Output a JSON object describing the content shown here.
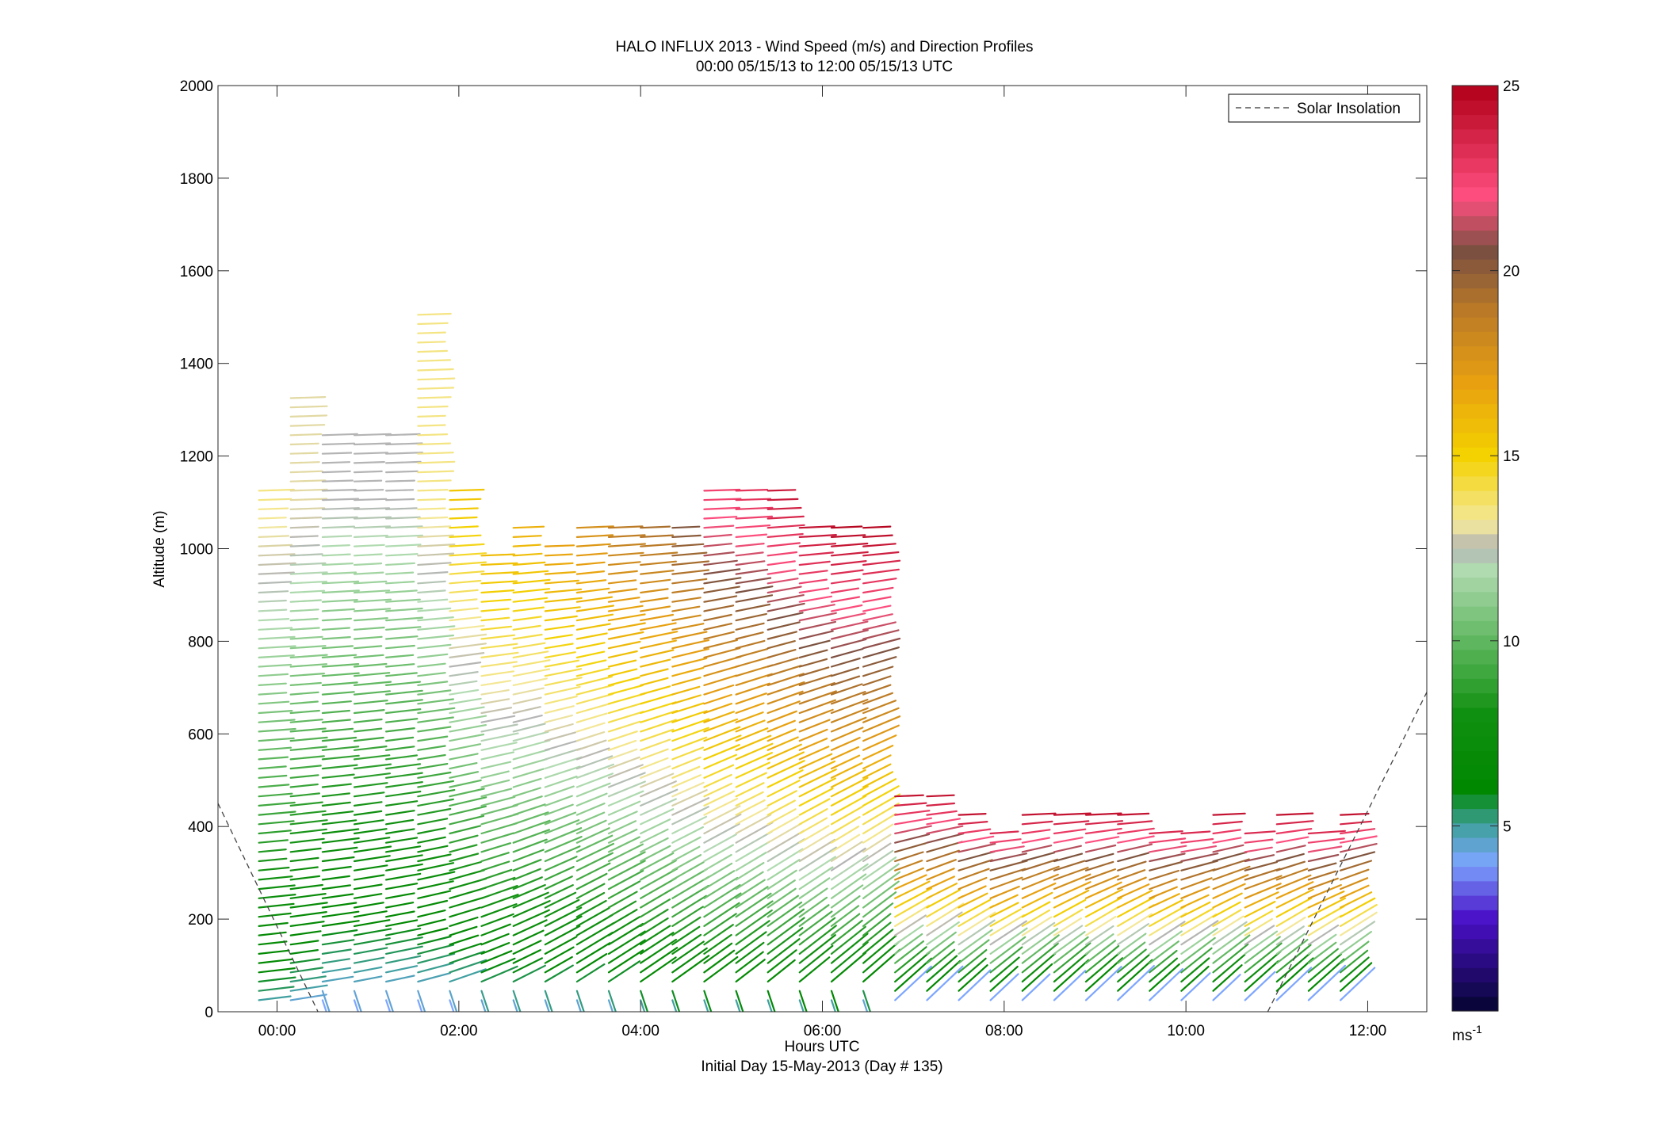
{
  "chart_data": {
    "type": "wind-barb-profile",
    "title": "HALO INFLUX 2013 - Wind Speed (m/s) and Direction Profiles",
    "subtitle": "00:00 05/15/13 to 12:00 05/15/13  UTC",
    "xlabel": "Hours UTC",
    "xlabel2": "Initial Day 15-May-2013 (Day # 135)",
    "ylabel": "Altitude (m)",
    "xlim_hours": [
      -0.65,
      12.65
    ],
    "ylim": [
      0,
      2000
    ],
    "x_ticks": [
      {
        "hour": 0,
        "label": "00:00"
      },
      {
        "hour": 2,
        "label": "02:00"
      },
      {
        "hour": 4,
        "label": "04:00"
      },
      {
        "hour": 6,
        "label": "06:00"
      },
      {
        "hour": 8,
        "label": "08:00"
      },
      {
        "hour": 10,
        "label": "10:00"
      },
      {
        "hour": 12,
        "label": "12:00"
      }
    ],
    "y_ticks": [
      {
        "value": 0,
        "label": "0"
      },
      {
        "value": 200,
        "label": "200"
      },
      {
        "value": 400,
        "label": "400"
      },
      {
        "value": 600,
        "label": "600"
      },
      {
        "value": 800,
        "label": "800"
      },
      {
        "value": 1000,
        "label": "1000"
      },
      {
        "value": 1200,
        "label": "1200"
      },
      {
        "value": 1400,
        "label": "1400"
      },
      {
        "value": 1600,
        "label": "1600"
      },
      {
        "value": 1800,
        "label": "1800"
      },
      {
        "value": 2000,
        "label": "2000"
      }
    ],
    "legend": {
      "label": "Solar Insolation",
      "position": "top-right"
    },
    "colorbar": {
      "min": 0,
      "max": 25,
      "unit_label": "ms",
      "unit_exponent": "-1",
      "ticks": [
        {
          "value": 5,
          "label": "5"
        },
        {
          "value": 10,
          "label": "10"
        },
        {
          "value": 15,
          "label": "15"
        },
        {
          "value": 20,
          "label": "20"
        },
        {
          "value": 25,
          "label": "25"
        }
      ],
      "stops": [
        {
          "v": 0,
          "c": "#050530"
        },
        {
          "v": 2.5,
          "c": "#4a10c8"
        },
        {
          "v": 4,
          "c": "#7da6ff"
        },
        {
          "v": 5,
          "c": "#40a0a0"
        },
        {
          "v": 6,
          "c": "#008800"
        },
        {
          "v": 8,
          "c": "#109010"
        },
        {
          "v": 10,
          "c": "#60b860"
        },
        {
          "v": 12,
          "c": "#b4dcb4"
        },
        {
          "v": 12.5,
          "c": "#b4b4b4"
        },
        {
          "v": 13.2,
          "c": "#f4e89c"
        },
        {
          "v": 15,
          "c": "#f4d200"
        },
        {
          "v": 17,
          "c": "#e8a010"
        },
        {
          "v": 19,
          "c": "#b87828"
        },
        {
          "v": 20.5,
          "c": "#7a5040"
        },
        {
          "v": 22,
          "c": "#ff4f80"
        },
        {
          "v": 25,
          "c": "#b00018"
        }
      ]
    },
    "solar_insolation": {
      "left_segment": [
        [
          -0.65,
          450
        ],
        [
          0.45,
          0
        ]
      ],
      "right_segment": [
        [
          10.9,
          0
        ],
        [
          12.65,
          690
        ]
      ]
    },
    "profiles": [
      {
        "t": -0.2,
        "top": 1140,
        "vmin": 5,
        "vmax": 13.5,
        "s0": 0.22
      },
      {
        "t": 0.15,
        "top": 1330,
        "vmin": 4.5,
        "vmax": 13,
        "s0": 0.28
      },
      {
        "t": 0.5,
        "top": 1250,
        "vmin": 4,
        "vmax": 12.5,
        "s0": 0.3
      },
      {
        "t": 0.85,
        "top": 1250,
        "vmin": 4,
        "vmax": 12.5,
        "s0": 0.36
      },
      {
        "t": 1.2,
        "top": 1250,
        "vmin": 4,
        "vmax": 12.5,
        "s0": 0.4
      },
      {
        "t": 1.55,
        "top": 1510,
        "vmin": 4,
        "vmax": 13.5,
        "s0": 0.5
      },
      {
        "t": 1.9,
        "top": 1140,
        "vmin": 4,
        "vmax": 15.5,
        "s0": 0.65
      },
      {
        "t": 2.25,
        "top": 1000,
        "vmin": 4.5,
        "vmax": 16,
        "s0": 0.8
      },
      {
        "t": 2.6,
        "top": 1060,
        "vmin": 4.5,
        "vmax": 16.5,
        "s0": 0.95
      },
      {
        "t": 2.95,
        "top": 1010,
        "vmin": 4.5,
        "vmax": 17,
        "s0": 1.1
      },
      {
        "t": 3.3,
        "top": 1060,
        "vmin": 4.5,
        "vmax": 18,
        "s0": 1.2
      },
      {
        "t": 3.65,
        "top": 1060,
        "vmin": 4.5,
        "vmax": 19,
        "s0": 1.25
      },
      {
        "t": 4.0,
        "top": 1060,
        "vmin": 5,
        "vmax": 19.5,
        "s0": 1.3
      },
      {
        "t": 4.35,
        "top": 1060,
        "vmin": 5,
        "vmax": 20.5,
        "s0": 1.35
      },
      {
        "t": 4.7,
        "top": 1140,
        "vmin": 5,
        "vmax": 22.5,
        "s0": 1.4
      },
      {
        "t": 5.05,
        "top": 1140,
        "vmin": 5,
        "vmax": 23,
        "s0": 1.45
      },
      {
        "t": 5.4,
        "top": 1140,
        "vmin": 5,
        "vmax": 24,
        "s0": 1.5
      },
      {
        "t": 5.75,
        "top": 1060,
        "vmin": 5,
        "vmax": 24.5,
        "s0": 1.55
      },
      {
        "t": 6.1,
        "top": 1060,
        "vmin": 5,
        "vmax": 25,
        "s0": 1.6
      },
      {
        "t": 6.45,
        "top": 1060,
        "vmin": 4.5,
        "vmax": 25,
        "s0": 1.65
      },
      {
        "t": 6.8,
        "top": 470,
        "vmin": 4,
        "vmax": 24.5,
        "s0": 1.7
      },
      {
        "t": 7.15,
        "top": 470,
        "vmin": 4,
        "vmax": 24.5,
        "s0": 1.72
      },
      {
        "t": 7.5,
        "top": 430,
        "vmin": 4,
        "vmax": 24.5,
        "s0": 1.72
      },
      {
        "t": 7.85,
        "top": 400,
        "vmin": 4,
        "vmax": 24,
        "s0": 1.72
      },
      {
        "t": 8.2,
        "top": 430,
        "vmin": 4,
        "vmax": 24.5,
        "s0": 1.72
      },
      {
        "t": 8.55,
        "top": 430,
        "vmin": 4,
        "vmax": 24.5,
        "s0": 1.72
      },
      {
        "t": 8.9,
        "top": 430,
        "vmin": 4,
        "vmax": 24.5,
        "s0": 1.72
      },
      {
        "t": 9.25,
        "top": 430,
        "vmin": 4,
        "vmax": 24.5,
        "s0": 1.72
      },
      {
        "t": 9.6,
        "top": 400,
        "vmin": 4,
        "vmax": 24,
        "s0": 1.72
      },
      {
        "t": 9.95,
        "top": 400,
        "vmin": 4,
        "vmax": 24,
        "s0": 1.72
      },
      {
        "t": 10.3,
        "top": 430,
        "vmin": 4,
        "vmax": 24.5,
        "s0": 1.72
      },
      {
        "t": 10.65,
        "top": 400,
        "vmin": 4,
        "vmax": 24,
        "s0": 1.72
      },
      {
        "t": 11.0,
        "top": 430,
        "vmin": 4,
        "vmax": 24.5,
        "s0": 1.72
      },
      {
        "t": 11.35,
        "top": 400,
        "vmin": 4,
        "vmax": 24,
        "s0": 1.72
      },
      {
        "t": 11.7,
        "top": 430,
        "vmin": 4,
        "vmax": 24.5,
        "s0": 1.72
      }
    ]
  }
}
